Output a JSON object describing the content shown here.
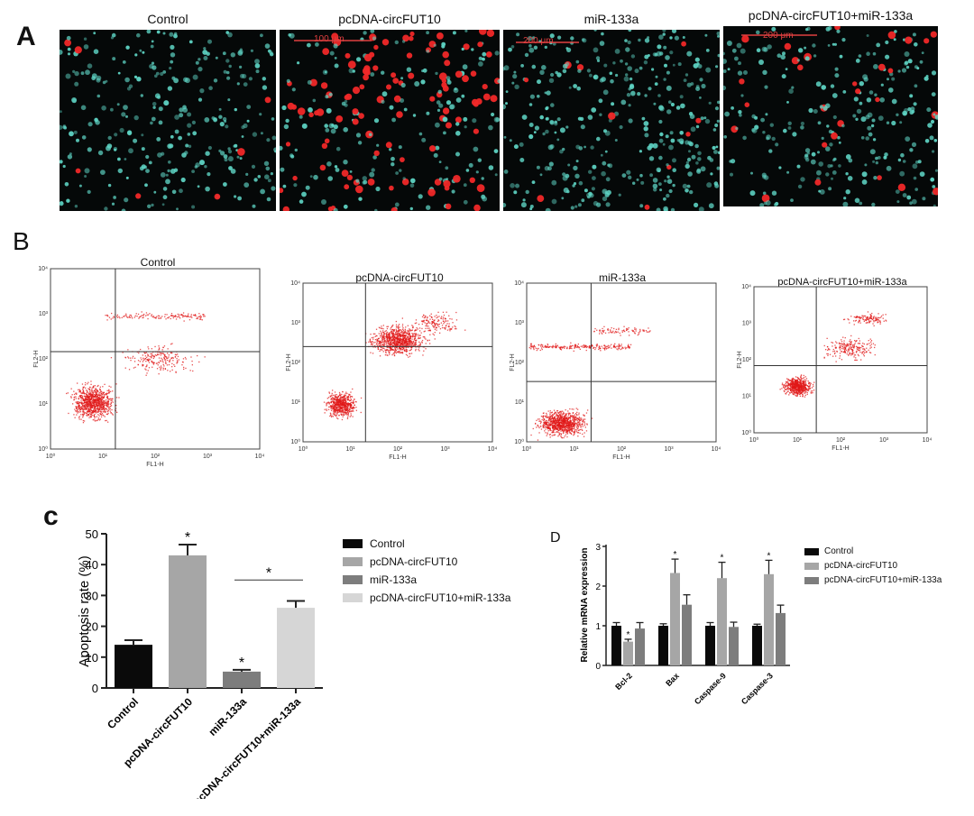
{
  "panel_letters": {
    "a": "A",
    "b": "B",
    "c": "c",
    "d": "D"
  },
  "micrographs": {
    "titles": [
      "Control",
      "pcDNA-circFUT10",
      "miR-133a",
      "pcDNA-circFUT10+miR-133a"
    ],
    "scale_labels": [
      "",
      "100 μm",
      "200 μm",
      "200 μm"
    ],
    "red_fraction": [
      0.03,
      0.35,
      0.02,
      0.12
    ],
    "colors": {
      "background": "#050808",
      "nucleus": "#5fd6c6",
      "apoptotic": "#f02828"
    }
  },
  "flow": {
    "titles": [
      "Control",
      "pcDNA-circFUT10",
      "miR-133a",
      "pcDNA-circFUT10+miR-133a"
    ],
    "xlabel": "FL1-H",
    "ylabel": "FL2-H",
    "ticks": [
      "10⁰",
      "10¹",
      "10²",
      "10³",
      "10⁴"
    ],
    "dot_color": "#e01818"
  },
  "chart_data": [
    {
      "type": "bar",
      "title": "",
      "ylabel": "Apoptosis rate (%)",
      "categories": [
        "Control",
        "pcDNA-circFUT10",
        "miR-133a",
        "pcDNA-circFUT10+miR-133a"
      ],
      "values": [
        14,
        43,
        5.3,
        26
      ],
      "errors": [
        1.5,
        3.5,
        0.6,
        2.2
      ],
      "colors": [
        "#0a0a0a",
        "#a6a6a6",
        "#7d7d7d",
        "#d6d6d6"
      ],
      "ylim": [
        0,
        50
      ],
      "yticks": [
        0,
        10,
        20,
        30,
        40,
        50
      ],
      "significance": [
        "",
        "*",
        "*",
        ""
      ],
      "bracket": {
        "from": "miR-133a",
        "to": "pcDNA-circFUT10+miR-133a",
        "label": "*"
      },
      "legend": [
        "Control",
        "pcDNA-circFUT10",
        "miR-133a",
        "pcDNA-circFUT10+miR-133a"
      ],
      "legend_position": "right"
    },
    {
      "type": "bar",
      "title": "",
      "ylabel": "Relative mRNA expression",
      "categories": [
        "Bcl-2",
        "Bax",
        "Caspase-9",
        "Caspase-3"
      ],
      "series": [
        {
          "name": "Control",
          "color": "#0a0a0a",
          "values": [
            1.0,
            1.0,
            1.0,
            1.0
          ],
          "errors": [
            0.08,
            0.05,
            0.08,
            0.04
          ],
          "sig": [
            "",
            "",
            "",
            ""
          ]
        },
        {
          "name": "pcDNA-circFUT10",
          "color": "#a6a6a6",
          "values": [
            0.6,
            2.33,
            2.2,
            2.3
          ],
          "errors": [
            0.06,
            0.35,
            0.4,
            0.35
          ],
          "sig": [
            "*",
            "*",
            "*",
            "*"
          ]
        },
        {
          "name": "pcDNA-circFUT10+miR-133a",
          "color": "#7d7d7d",
          "values": [
            0.93,
            1.53,
            0.97,
            1.32
          ],
          "errors": [
            0.15,
            0.25,
            0.12,
            0.2
          ],
          "sig": [
            "",
            "",
            "",
            ""
          ]
        }
      ],
      "ylim": [
        0,
        3
      ],
      "yticks": [
        0,
        1,
        2,
        3
      ],
      "legend_position": "right"
    }
  ]
}
